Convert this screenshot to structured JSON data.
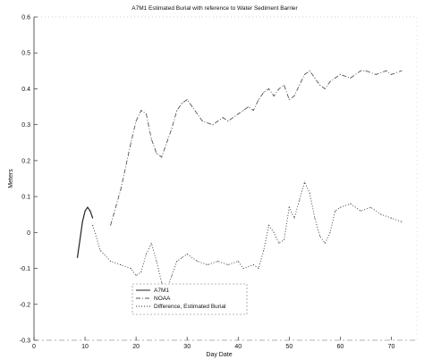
{
  "chart_data": {
    "type": "line",
    "title": "A7M1 Estimated Burial with reference to Water Sediment Barrier",
    "xlabel": "Day Date",
    "ylabel": "Meters",
    "xlim": [
      0,
      75
    ],
    "ylim": [
      -0.3,
      0.6
    ],
    "x_ticks": [
      0,
      10,
      20,
      30,
      40,
      50,
      60,
      70
    ],
    "y_ticks": [
      0.6,
      0.5,
      0.4,
      0.3,
      0.2,
      0.1,
      0,
      -0.1,
      -0.2,
      -0.3
    ],
    "x_tick_labels": [
      "0",
      "10",
      "20",
      "30",
      "40",
      "50",
      "60",
      "70"
    ],
    "y_tick_labels": [
      "0.6",
      "0.5",
      "0.4",
      "0.3",
      "0.2",
      "0.1",
      "0",
      "-0.1",
      "-0.2",
      "-0.3"
    ],
    "grid": false,
    "legend_position": "bottom-center",
    "series": [
      {
        "name": "A7M1",
        "style": "solid",
        "color": "#222222",
        "x": [
          8.5,
          9,
          9.5,
          10,
          10.5,
          11,
          11.5
        ],
        "y": [
          -0.07,
          -0.02,
          0.03,
          0.06,
          0.07,
          0.06,
          0.04
        ]
      },
      {
        "name": "NOAA",
        "style": "dashdot",
        "color": "#555555",
        "x": [
          15,
          17,
          19,
          20,
          21,
          22,
          23,
          24,
          25,
          27,
          28,
          29,
          30,
          31,
          32,
          33,
          35,
          37,
          38,
          40,
          41,
          42,
          43,
          44,
          45,
          46,
          47,
          48,
          49,
          50,
          51,
          52,
          53,
          54,
          55,
          56,
          57,
          58,
          59,
          60,
          62,
          64,
          65,
          67,
          69,
          70,
          72
        ],
        "y": [
          0.02,
          0.12,
          0.25,
          0.31,
          0.34,
          0.33,
          0.26,
          0.22,
          0.21,
          0.29,
          0.34,
          0.36,
          0.37,
          0.35,
          0.33,
          0.31,
          0.3,
          0.32,
          0.31,
          0.33,
          0.34,
          0.35,
          0.34,
          0.37,
          0.39,
          0.4,
          0.38,
          0.4,
          0.41,
          0.37,
          0.38,
          0.41,
          0.44,
          0.45,
          0.43,
          0.41,
          0.4,
          0.42,
          0.43,
          0.44,
          0.43,
          0.45,
          0.45,
          0.44,
          0.45,
          0.44,
          0.45
        ]
      },
      {
        "name": "Difference, Estimated Burial",
        "style": "dotted",
        "color": "#333333",
        "x": [
          11.5,
          13,
          15,
          17,
          19,
          20,
          21,
          22,
          23,
          24,
          25,
          26,
          27,
          28,
          29,
          30,
          32,
          34,
          36,
          38,
          40,
          41,
          43,
          44,
          45,
          46,
          47,
          48,
          49,
          50,
          51,
          52,
          53,
          54,
          55,
          56,
          57,
          58,
          59,
          60,
          62,
          64,
          66,
          68,
          70,
          72
        ],
        "y": [
          0.02,
          -0.05,
          -0.08,
          -0.09,
          -0.1,
          -0.12,
          -0.11,
          -0.06,
          -0.03,
          -0.08,
          -0.14,
          -0.16,
          -0.12,
          -0.08,
          -0.07,
          -0.06,
          -0.08,
          -0.09,
          -0.08,
          -0.09,
          -0.08,
          -0.1,
          -0.09,
          -0.1,
          -0.05,
          0.02,
          0.0,
          -0.03,
          -0.02,
          0.07,
          0.04,
          0.09,
          0.14,
          0.11,
          0.04,
          -0.01,
          -0.03,
          0.0,
          0.06,
          0.07,
          0.08,
          0.06,
          0.07,
          0.05,
          0.04,
          0.03
        ]
      }
    ]
  }
}
